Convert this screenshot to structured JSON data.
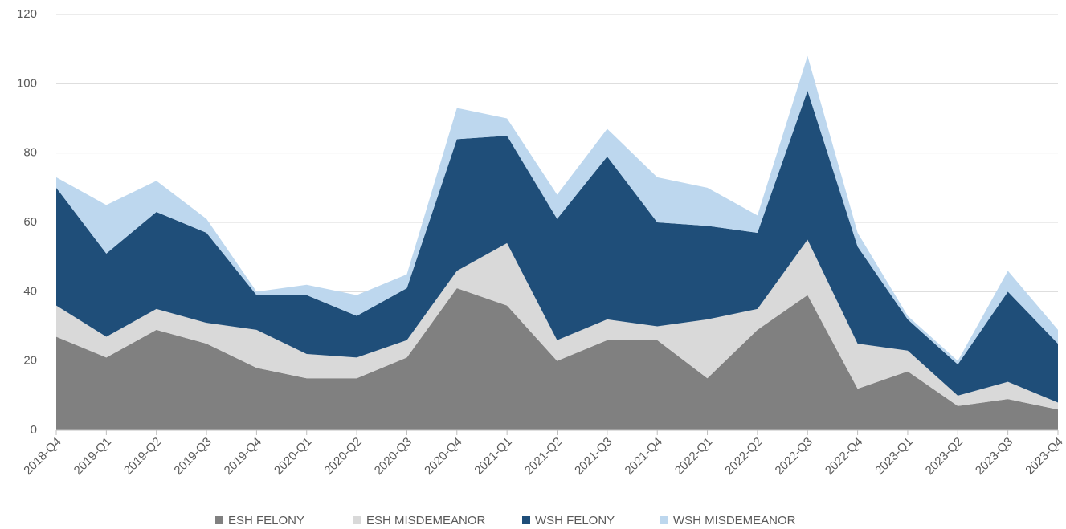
{
  "chart_data": {
    "type": "stacked_area",
    "categories": [
      "2018-Q4",
      "2019-Q1",
      "2019-Q2",
      "2019-Q3",
      "2019-Q4",
      "2020-Q1",
      "2020-Q2",
      "2020-Q3",
      "2020-Q4",
      "2021-Q1",
      "2021-Q2",
      "2021-Q3",
      "2021-Q4",
      "2022-Q1",
      "2022-Q2",
      "2022-Q3",
      "2022-Q4",
      "2023-Q1",
      "2023-Q2",
      "2023-Q3",
      "2023-Q4"
    ],
    "series": [
      {
        "name": "ESH FELONY",
        "color": "#808080",
        "values": [
          27,
          21,
          29,
          25,
          18,
          15,
          15,
          21,
          41,
          36,
          20,
          26,
          26,
          15,
          29,
          39,
          12,
          17,
          7,
          9,
          6
        ]
      },
      {
        "name": "ESH MISDEMEANOR",
        "color": "#d9d9d9",
        "values": [
          9,
          6,
          6,
          6,
          11,
          7,
          6,
          5,
          5,
          18,
          6,
          6,
          4,
          17,
          6,
          16,
          13,
          6,
          3,
          5,
          2
        ]
      },
      {
        "name": "WSH FELONY",
        "color": "#1f4e79",
        "values": [
          34,
          24,
          28,
          26,
          10,
          17,
          12,
          15,
          38,
          31,
          35,
          47,
          30,
          27,
          22,
          43,
          28,
          9,
          9,
          26,
          17
        ]
      },
      {
        "name": "WSH MISDEMEANOR",
        "color": "#bdd7ee",
        "values": [
          3,
          14,
          9,
          4,
          1,
          3,
          6,
          4,
          9,
          5,
          7,
          8,
          13,
          11,
          5,
          10,
          4,
          1,
          1,
          6,
          4
        ]
      }
    ],
    "ylim": [
      0,
      120
    ],
    "yticks": [
      0,
      20,
      40,
      60,
      80,
      100,
      120
    ],
    "grid": true,
    "legend": "bottom"
  }
}
